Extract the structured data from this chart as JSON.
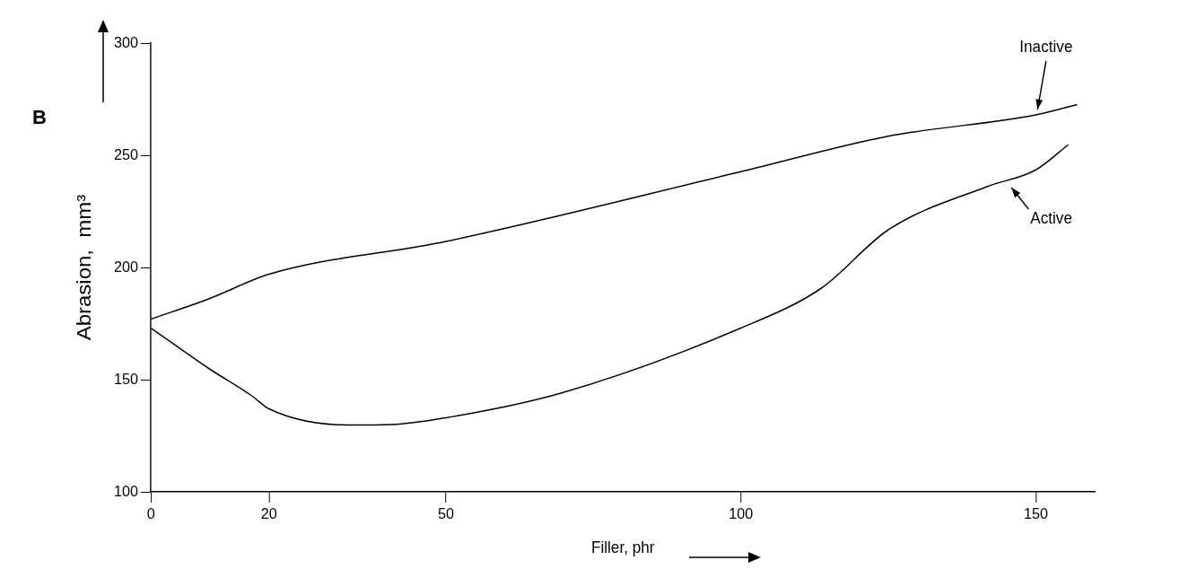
{
  "chart_data": {
    "type": "line",
    "xlabel": "Filler, phr",
    "ylabel": "Abrasion,  mm³",
    "series": [
      {
        "color": "#000000",
        "x": [
          0,
          9.8,
          20,
          50,
          100,
          125,
          150,
          157
        ],
        "values": [
          177,
          186,
          197,
          211.6,
          242.7,
          258.5,
          268,
          272.6
        ]
      },
      {
        "color": "#000000",
        "x": [
          0,
          9.8,
          17.2,
          20,
          33.5,
          40.9,
          50,
          69.5,
          100,
          113.6,
          125,
          141.7,
          150,
          155.5
        ],
        "values": [
          173,
          155,
          142.6,
          137,
          129.8,
          130,
          133,
          144,
          173,
          190.7,
          216.8,
          236,
          243.5,
          254.7
        ]
      }
    ],
    "xlim": [
      0,
      160
    ],
    "xticks": [
      0,
      20,
      50,
      100,
      150
    ],
    "ylim": [
      100,
      300
    ],
    "yticks": [
      100,
      150,
      200,
      250,
      300
    ],
    "grid": false,
    "legend": false,
    "marker": "none",
    "line_style": "solid",
    "annotations": [
      "B",
      {
        "text": "Inactive",
        "x": 150,
        "y": 268
      },
      {
        "text": "Active",
        "x": 145,
        "y": 238
      }
    ]
  }
}
